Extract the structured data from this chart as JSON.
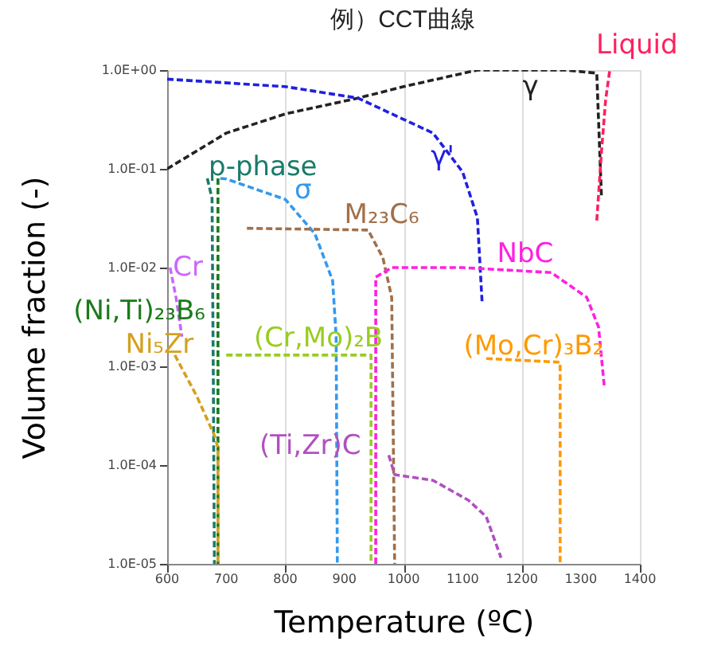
{
  "chart_data": {
    "type": "line",
    "title": "例）CCT曲線",
    "xlabel": "Temperature (ºC)",
    "ylabel": "Volume fraction (-)",
    "log": "y",
    "grid": "x",
    "legend": false,
    "line_style": "dashed",
    "xlim": [
      600,
      1400
    ],
    "xticks": [
      600,
      700,
      800,
      900,
      1000,
      1100,
      1200,
      1300,
      1400
    ],
    "ylim": [
      1e-05,
      1
    ],
    "yticks": [
      {
        "value": 1,
        "label": "1.0E+00"
      },
      {
        "value": 0.1,
        "label": "1.0E-01"
      },
      {
        "value": 0.01,
        "label": "1.0E-02"
      },
      {
        "value": 0.001,
        "label": "1.0E-03"
      },
      {
        "value": 0.0001,
        "label": "1.0E-04"
      },
      {
        "value": 1e-05,
        "label": "1.0E-05"
      }
    ],
    "series": [
      {
        "name": "γ",
        "color": "#222222",
        "x": [
          600,
          700,
          800,
          923,
          1000,
          1125,
          1275,
          1327,
          1335
        ],
        "values": [
          0.1,
          0.23,
          0.36,
          0.52,
          0.68,
          1.0,
          1.0,
          0.93,
          0.05
        ]
      },
      {
        "name": "Liquid",
        "color": "#ff2060",
        "x": [
          1327,
          1335,
          1342,
          1349
        ],
        "values": [
          0.03,
          0.15,
          0.5,
          1.0
        ]
      },
      {
        "name": "p-phase",
        "color": "#1a7a6a",
        "x": [
          668,
          676,
          678,
          680
        ],
        "values": [
          0.08,
          0.05,
          0.001,
          1e-05
        ]
      },
      {
        "name": "γ'",
        "color": "#2020e0",
        "x": [
          600,
          800,
          923,
          1050,
          1100,
          1125,
          1133
        ],
        "values": [
          0.81,
          0.68,
          0.52,
          0.23,
          0.093,
          0.032,
          0.0044
        ]
      },
      {
        "name": "σ",
        "color": "#3399ee",
        "x": [
          690,
          700,
          800,
          850,
          880,
          886,
          888
        ],
        "values": [
          0.08,
          0.079,
          0.049,
          0.022,
          0.0074,
          0.002,
          1e-05
        ]
      },
      {
        "name": "M₂₃C₆",
        "color": "#a0704a",
        "x": [
          735,
          940,
          965,
          980,
          985
        ],
        "values": [
          0.025,
          0.024,
          0.0126,
          0.005,
          1e-05
        ]
      },
      {
        "name": "NbC",
        "color": "#ff20e0",
        "x": [
          953,
          953,
          980,
          1100,
          1250,
          1310,
          1330,
          1340
        ],
        "values": [
          1e-05,
          0.008,
          0.01,
          0.01,
          0.0089,
          0.005,
          0.0025,
          0.0006
        ]
      },
      {
        "name": "Cr",
        "color": "#cc66ff",
        "x": [
          605,
          615,
          625
        ],
        "values": [
          0.01,
          0.005,
          0.002
        ]
      },
      {
        "name": "(Ni,Ti)₂₃B₆",
        "color": "#1a7a1a",
        "x": [
          686,
          686
        ],
        "values": [
          0.08,
          1e-05
        ]
      },
      {
        "name": "Ni₅Zr",
        "color": "#d4a020",
        "x": [
          613,
          650,
          680,
          686,
          686
        ],
        "values": [
          0.0013,
          0.0005,
          0.0002,
          0.00015,
          1e-05
        ]
      },
      {
        "name": "(Cr,Mo)₂B",
        "color": "#99cc22",
        "x": [
          700,
          945,
          945
        ],
        "values": [
          0.0013,
          0.0013,
          1e-05
        ]
      },
      {
        "name": "(Mo,Cr)₃B₂",
        "color": "#ff9900",
        "x": [
          1140,
          1265,
          1265
        ],
        "values": [
          0.0012,
          0.0011,
          1e-05
        ]
      },
      {
        "name": "(Ti,Zr)C",
        "color": "#b050c0",
        "x": [
          975,
          985,
          1050,
          1110,
          1140,
          1165
        ],
        "values": [
          0.000126,
          8e-05,
          7e-05,
          4.4e-05,
          3e-05,
          1.15e-05
        ]
      }
    ]
  }
}
